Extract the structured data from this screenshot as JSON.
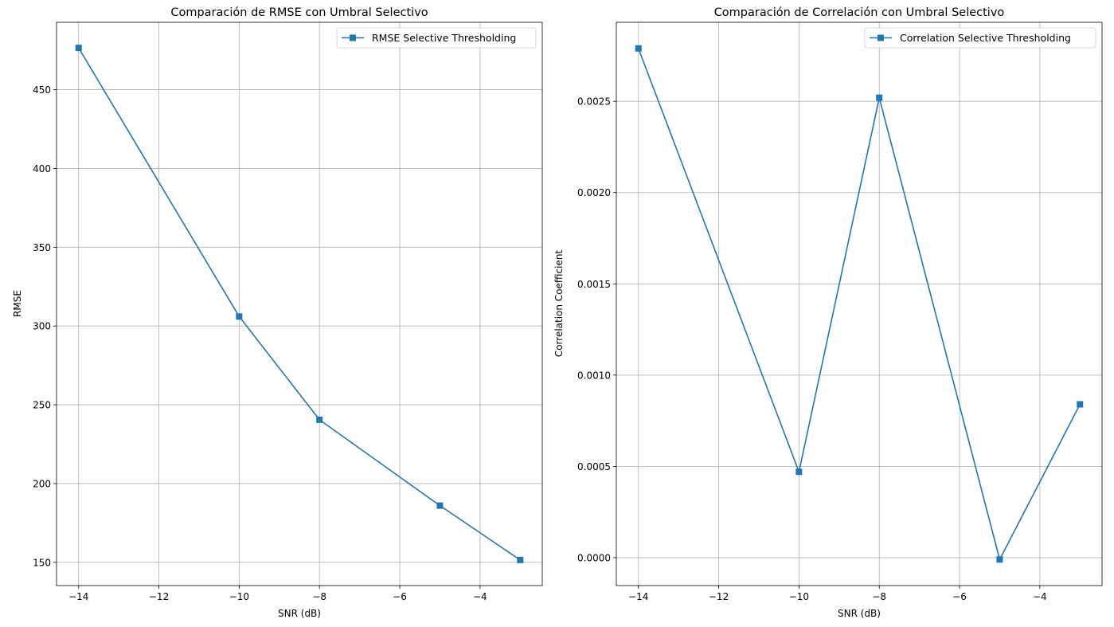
{
  "figure": {
    "background": "#ffffff",
    "line_color": "#1f77b4",
    "grid_color": "#b0b0b0"
  },
  "chart_data": [
    {
      "type": "line",
      "title": "Comparación de RMSE con Umbral Selectivo",
      "xlabel": "SNR (dB)",
      "ylabel": "RMSE",
      "x": [
        -14,
        -10,
        -8,
        -5,
        -3
      ],
      "series": [
        {
          "name": "RMSE Selective Thresholding",
          "values": [
            476.5,
            306.0,
            240.5,
            186.0,
            151.5
          ],
          "marker": "square"
        }
      ],
      "xlim": [
        -14.55,
        -2.45
      ],
      "ylim": [
        135.25,
        492.75
      ],
      "xticks": [
        -14,
        -12,
        -10,
        -8,
        -6,
        -4
      ],
      "xtick_labels": [
        "−14",
        "−12",
        "−10",
        "−8",
        "−6",
        "−4"
      ],
      "yticks": [
        150,
        200,
        250,
        300,
        350,
        400,
        450
      ],
      "ytick_labels": [
        "150",
        "200",
        "250",
        "300",
        "350",
        "400",
        "450"
      ],
      "grid": true,
      "legend_position": "upper right"
    },
    {
      "type": "line",
      "title": "Comparación de Correlación con Umbral Selectivo",
      "xlabel": "SNR (dB)",
      "ylabel": "Correlation Coefficient",
      "x": [
        -14,
        -10,
        -8,
        -5,
        -3
      ],
      "series": [
        {
          "name": "Correlation Selective Thresholding",
          "values": [
            0.00279,
            0.00047,
            0.00252,
            -1e-05,
            0.00084
          ],
          "marker": "square"
        }
      ],
      "xlim": [
        -14.55,
        -2.45
      ],
      "ylim": [
        -0.000153,
        0.002933
      ],
      "xticks": [
        -14,
        -12,
        -10,
        -8,
        -6,
        -4
      ],
      "xtick_labels": [
        "−14",
        "−12",
        "−10",
        "−8",
        "−6",
        "−4"
      ],
      "yticks": [
        0.0,
        0.0005,
        0.001,
        0.0015,
        0.002,
        0.0025
      ],
      "ytick_labels": [
        "0.0000",
        "0.0005",
        "0.0010",
        "0.0015",
        "0.0020",
        "0.0025"
      ],
      "grid": true,
      "legend_position": "upper right"
    }
  ]
}
